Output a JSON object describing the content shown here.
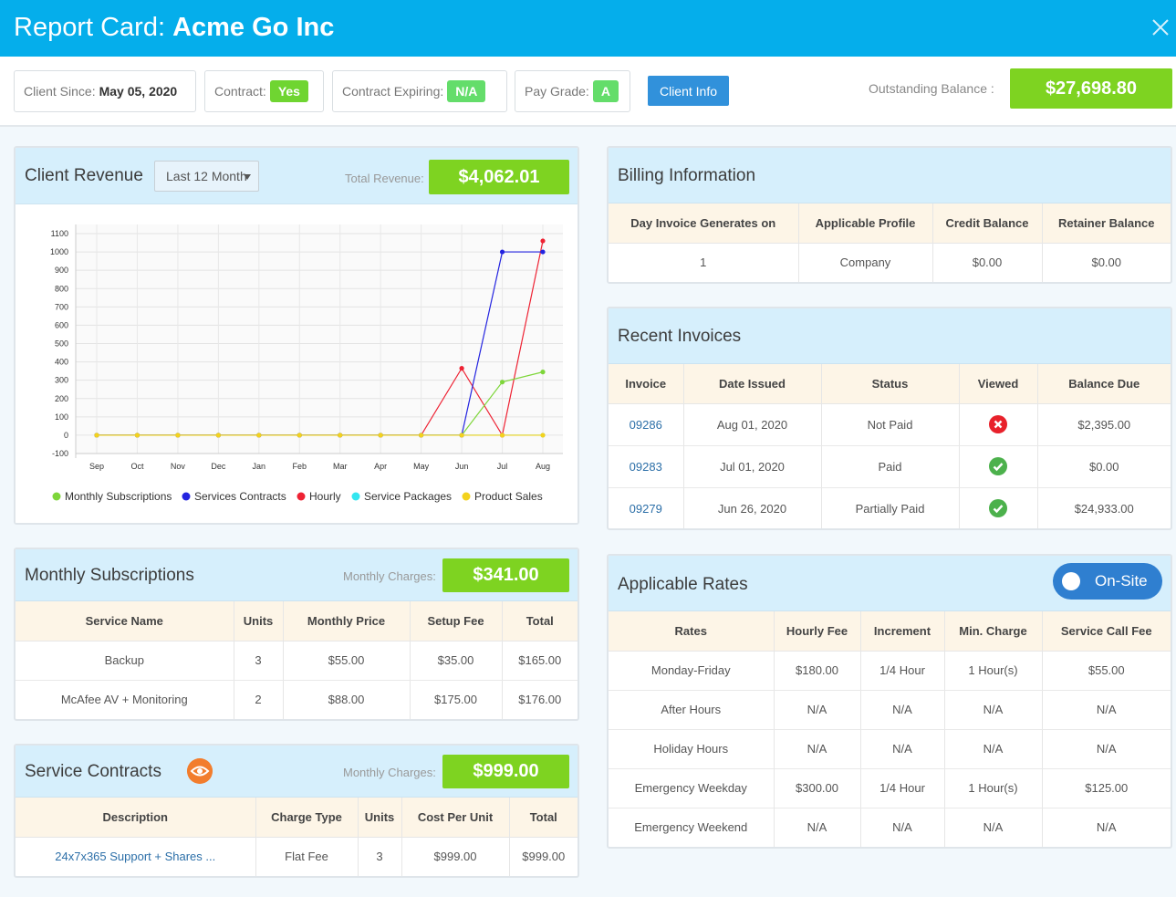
{
  "header": {
    "title_prefix": "Report Card:",
    "title_name": "Acme Go Inc"
  },
  "topbar": {
    "client_since_label": "Client Since:",
    "client_since_value": "May 05, 2020",
    "contract_label": "Contract:",
    "contract_value": "Yes",
    "contract_expiring_label": "Contract Expiring:",
    "contract_expiring_value": "N/A",
    "pay_grade_label": "Pay Grade:",
    "pay_grade_value": "A",
    "client_info_button": "Client Info",
    "outstanding_label": "Outstanding Balance :",
    "outstanding_value": "$27,698.80"
  },
  "revenue": {
    "title": "Client Revenue",
    "period": "Last 12 Month",
    "total_label": "Total Revenue:",
    "total_value": "$4,062.01"
  },
  "chart_data": {
    "type": "line",
    "categories": [
      "Sep",
      "Oct",
      "Nov",
      "Dec",
      "Jan",
      "Feb",
      "Mar",
      "Apr",
      "May",
      "Jun",
      "Jul",
      "Aug"
    ],
    "ylim": [
      -100,
      1100
    ],
    "yticks": [
      -100,
      0,
      100,
      200,
      300,
      400,
      500,
      600,
      700,
      800,
      900,
      1000,
      1100
    ],
    "grid": true,
    "legend_position": "bottom",
    "series": [
      {
        "name": "Monthly Subscriptions",
        "color": "#7ed63a",
        "values": [
          0,
          0,
          0,
          0,
          0,
          0,
          0,
          0,
          0,
          0,
          290,
          345
        ]
      },
      {
        "name": "Services Contracts",
        "color": "#2424e0",
        "values": [
          0,
          0,
          0,
          0,
          0,
          0,
          0,
          0,
          0,
          0,
          1000,
          1000
        ]
      },
      {
        "name": "Hourly",
        "color": "#ee2233",
        "values": [
          0,
          0,
          0,
          0,
          0,
          0,
          0,
          0,
          0,
          365,
          0,
          1060
        ]
      },
      {
        "name": "Service Packages",
        "color": "#33e6f0",
        "values": [
          0,
          0,
          0,
          0,
          0,
          0,
          0,
          0,
          0,
          0,
          0,
          0
        ]
      },
      {
        "name": "Product Sales",
        "color": "#f3d21d",
        "values": [
          0,
          0,
          0,
          0,
          0,
          0,
          0,
          0,
          0,
          0,
          0,
          0
        ]
      }
    ]
  },
  "subscriptions": {
    "title": "Monthly Subscriptions",
    "charges_label": "Monthly Charges:",
    "charges_value": "$341.00",
    "headers": [
      "Service Name",
      "Units",
      "Monthly Price",
      "Setup Fee",
      "Total"
    ],
    "rows": [
      [
        "Backup",
        "3",
        "$55.00",
        "$35.00",
        "$165.00"
      ],
      [
        "McAfee AV + Monitoring",
        "2",
        "$88.00",
        "$175.00",
        "$176.00"
      ]
    ]
  },
  "contracts": {
    "title": "Service Contracts",
    "charges_label": "Monthly Charges:",
    "charges_value": "$999.00",
    "headers": [
      "Description",
      "Charge Type",
      "Units",
      "Cost Per Unit",
      "Total"
    ],
    "rows": [
      [
        "24x7x365 Support + Shares ...",
        "Flat Fee",
        "3",
        "$999.00",
        "$999.00"
      ]
    ]
  },
  "billing": {
    "title": "Billing Information",
    "headers": [
      "Day Invoice Generates on",
      "Applicable Profile",
      "Credit Balance",
      "Retainer Balance"
    ],
    "rows": [
      [
        "1",
        "Company",
        "$0.00",
        "$0.00"
      ]
    ]
  },
  "invoices": {
    "title": "Recent Invoices",
    "headers": [
      "Invoice",
      "Date Issued",
      "Status",
      "Viewed",
      "Balance Due"
    ],
    "rows": [
      {
        "invoice": "09286",
        "date": "Aug 01, 2020",
        "status": "Not Paid",
        "viewed": false,
        "balance": "$2,395.00"
      },
      {
        "invoice": "09283",
        "date": "Jul 01, 2020",
        "status": "Paid",
        "viewed": true,
        "balance": "$0.00"
      },
      {
        "invoice": "09279",
        "date": "Jun 26, 2020",
        "status": "Partially Paid",
        "viewed": true,
        "balance": "$24,933.00"
      }
    ]
  },
  "rates": {
    "title": "Applicable Rates",
    "toggle_label": "On-Site",
    "headers": [
      "Rates",
      "Hourly Fee",
      "Increment",
      "Min. Charge",
      "Service Call Fee"
    ],
    "rows": [
      [
        "Monday-Friday",
        "$180.00",
        "1/4 Hour",
        "1 Hour(s)",
        "$55.00"
      ],
      [
        "After Hours",
        "N/A",
        "N/A",
        "N/A",
        "N/A"
      ],
      [
        "Holiday Hours",
        "N/A",
        "N/A",
        "N/A",
        "N/A"
      ],
      [
        "Emergency Weekday",
        "$300.00",
        "1/4 Hour",
        "1 Hour(s)",
        "$125.00"
      ],
      [
        "Emergency Weekend",
        "N/A",
        "N/A",
        "N/A",
        "N/A"
      ]
    ]
  }
}
